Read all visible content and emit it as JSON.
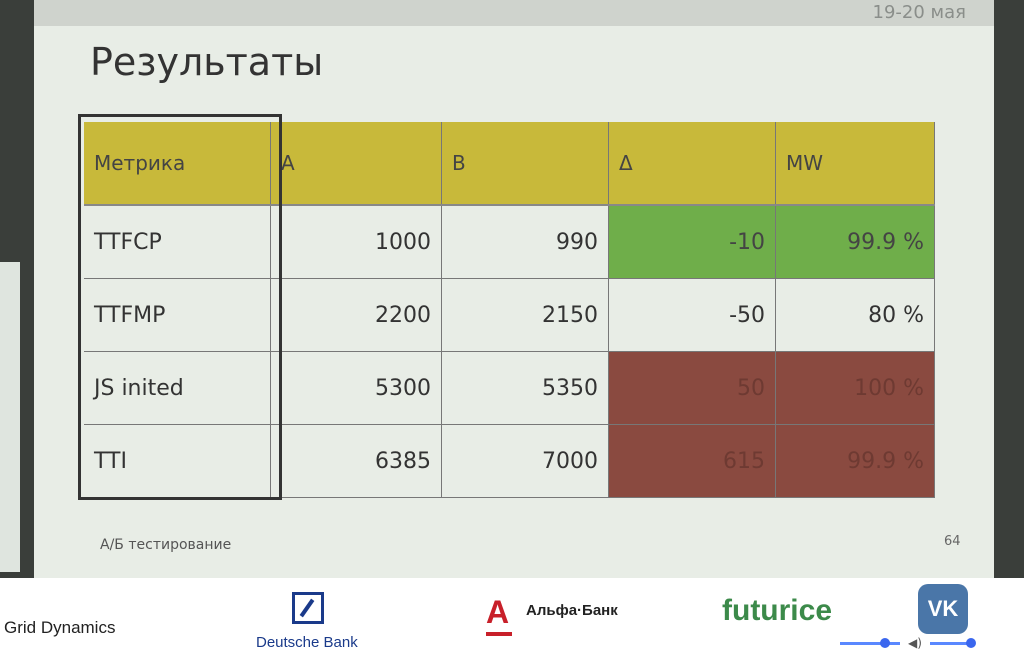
{
  "slide": {
    "date": "19-20 мая",
    "title": "Результаты",
    "footer_left": "А/Б тестирование",
    "page_number": "64"
  },
  "table": {
    "headers": [
      "Метрика",
      "A",
      "B",
      "Δ",
      "MW"
    ],
    "rows": [
      {
        "metric": "TTFCP",
        "a": "1000",
        "b": "990",
        "delta": "-10",
        "mw": "99.9 %",
        "status": "green"
      },
      {
        "metric": "TTFMP",
        "a": "2200",
        "b": "2150",
        "delta": "-50",
        "mw": "80 %",
        "status": "none"
      },
      {
        "metric": "JS inited",
        "a": "5300",
        "b": "5350",
        "delta": "50",
        "mw": "100 %",
        "status": "red"
      },
      {
        "metric": "TTI",
        "a": "6385",
        "b": "7000",
        "delta": "615",
        "mw": "99.9 %",
        "status": "red"
      }
    ],
    "colors": {
      "header": "#c8b93a",
      "green": "#6fae4a",
      "red": "#8a4a40"
    }
  },
  "sponsors": {
    "grid_dynamics": "Grid Dynamics",
    "deutsche_bank": "Deutsche Bank",
    "alfa_letter": "А",
    "alfa_bank": "Альфа·Банк",
    "futurice": "futurice",
    "vk": "VK"
  }
}
